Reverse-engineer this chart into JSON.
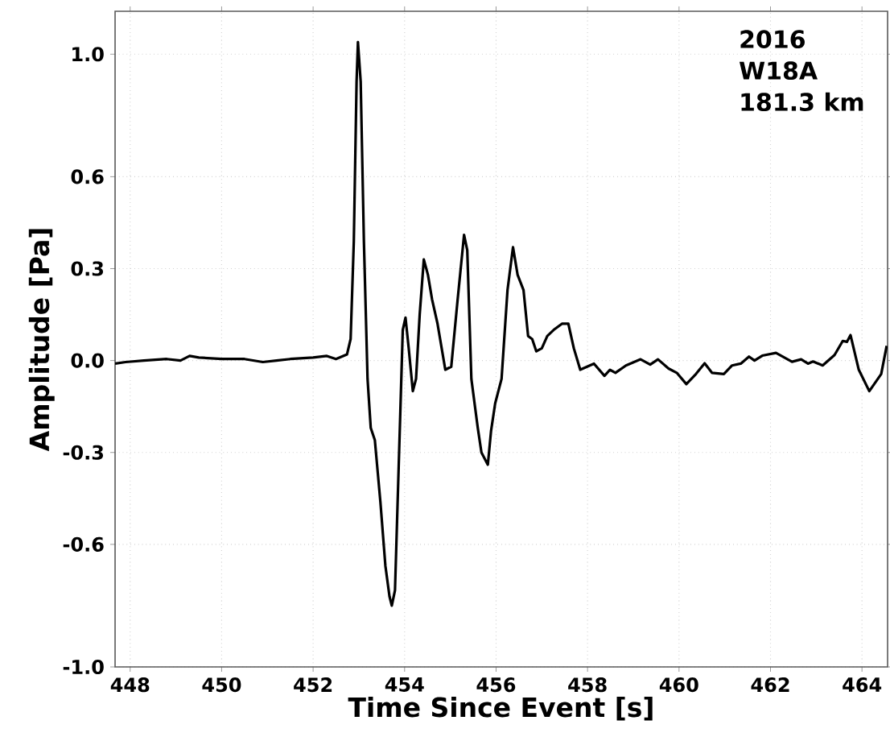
{
  "chart_data": {
    "type": "line",
    "xlabel": "Time Since Event [s]",
    "ylabel": "Amplitude [Pa]",
    "annotations": [
      "2016",
      "W18A",
      "181.3 km"
    ],
    "xlim": [
      447.67,
      464.56
    ],
    "ylim": [
      -1.0,
      1.14
    ],
    "xticks": [
      448,
      450,
      452,
      454,
      456,
      458,
      460,
      462,
      464
    ],
    "yticks": [
      {
        "value": -1.0,
        "label": "-1.0"
      },
      {
        "value": -0.6,
        "label": "-0.6"
      },
      {
        "value": -0.3,
        "label": "-0.3"
      },
      {
        "value": 0.0,
        "label": "0.0"
      },
      {
        "value": 0.3,
        "label": "0.3"
      },
      {
        "value": 0.6,
        "label": "0.6"
      },
      {
        "value": 1.0,
        "label": "1.0"
      }
    ],
    "grid": true,
    "series": [
      {
        "color": "#000000",
        "x": [
          447.67,
          447.9,
          448.3,
          448.8,
          449.1,
          449.3,
          449.5,
          450.0,
          450.5,
          450.9,
          451.2,
          451.5,
          452.0,
          452.3,
          452.5,
          452.74,
          452.82,
          452.89,
          452.95,
          452.98,
          453.04,
          453.11,
          453.19,
          453.26,
          453.35,
          453.47,
          453.58,
          453.67,
          453.72,
          453.79,
          453.88,
          453.96,
          454.02,
          454.09,
          454.18,
          454.25,
          454.33,
          454.42,
          454.51,
          454.6,
          454.72,
          454.89,
          455.02,
          455.16,
          455.3,
          455.37,
          455.46,
          455.6,
          455.68,
          455.75,
          455.82,
          455.89,
          455.98,
          456.12,
          456.25,
          456.37,
          456.47,
          456.6,
          456.7,
          456.79,
          456.88,
          457.0,
          457.12,
          457.26,
          457.44,
          457.58,
          457.7,
          457.84,
          458.14,
          458.37,
          458.49,
          458.61,
          458.84,
          459.16,
          459.37,
          459.54,
          459.77,
          459.95,
          460.16,
          460.37,
          460.56,
          460.72,
          460.98,
          461.16,
          461.35,
          461.53,
          461.65,
          461.82,
          462.12,
          462.47,
          462.67,
          462.82,
          462.93,
          463.14,
          463.4,
          463.58,
          463.67,
          463.75,
          463.93,
          464.16,
          464.42,
          464.54
        ],
        "values": [
          -0.01,
          -0.005,
          0.0,
          0.005,
          0.0,
          0.015,
          0.01,
          0.005,
          0.005,
          -0.005,
          0.0,
          0.005,
          0.01,
          0.015,
          0.005,
          0.02,
          0.07,
          0.39,
          0.91,
          1.04,
          0.91,
          0.39,
          -0.06,
          -0.22,
          -0.26,
          -0.46,
          -0.67,
          -0.77,
          -0.8,
          -0.75,
          -0.3,
          0.1,
          0.14,
          0.04,
          -0.1,
          -0.06,
          0.15,
          0.33,
          0.28,
          0.2,
          0.12,
          -0.03,
          -0.02,
          0.2,
          0.41,
          0.36,
          -0.06,
          -0.22,
          -0.3,
          -0.32,
          -0.34,
          -0.23,
          -0.14,
          -0.06,
          0.23,
          0.37,
          0.28,
          0.23,
          0.08,
          0.07,
          0.03,
          0.04,
          0.08,
          0.1,
          0.12,
          0.12,
          0.04,
          -0.03,
          -0.01,
          -0.05,
          -0.03,
          -0.04,
          -0.016,
          0.004,
          -0.013,
          0.004,
          -0.026,
          -0.04,
          -0.077,
          -0.044,
          -0.009,
          -0.04,
          -0.044,
          -0.016,
          -0.01,
          0.013,
          0.0,
          0.016,
          0.025,
          -0.004,
          0.004,
          -0.01,
          -0.003,
          -0.016,
          0.018,
          0.064,
          0.061,
          0.083,
          -0.03,
          -0.1,
          -0.044,
          0.048
        ]
      }
    ]
  }
}
